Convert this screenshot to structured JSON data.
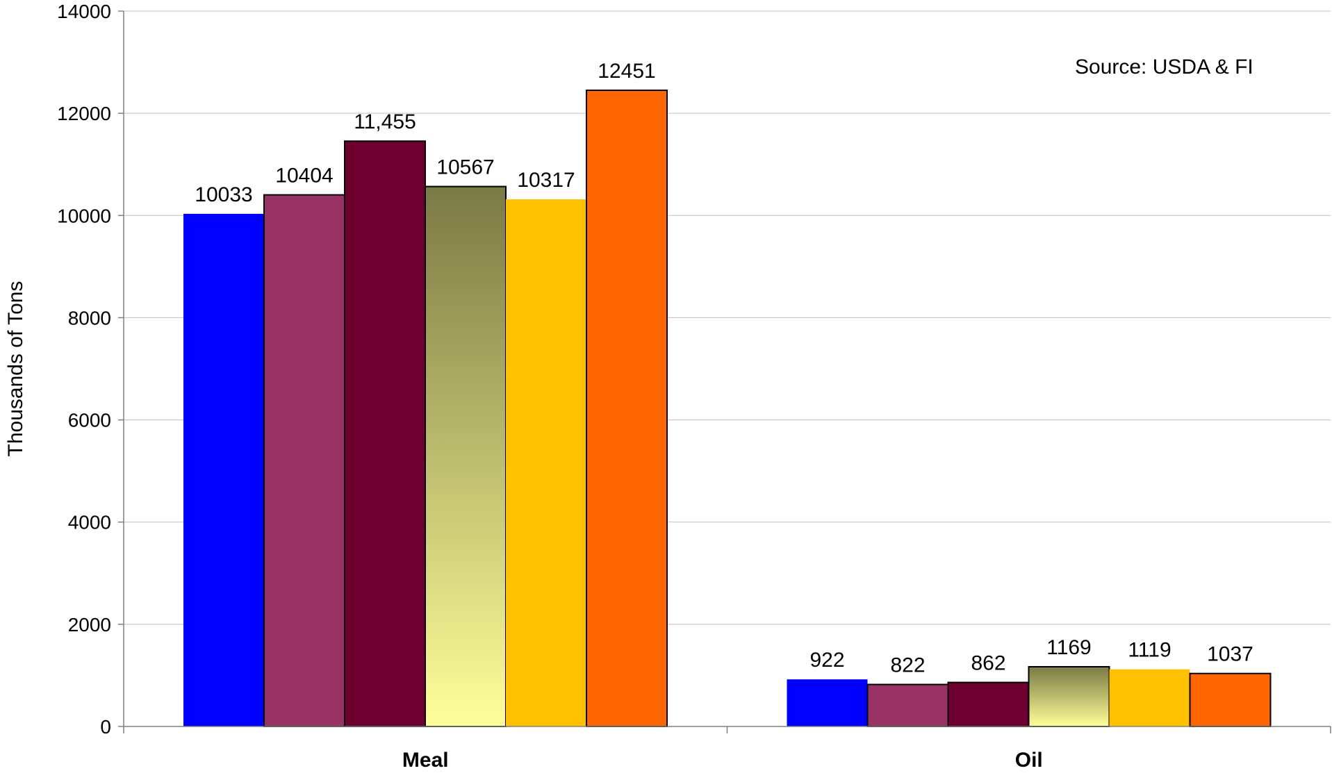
{
  "chart_data": {
    "type": "bar",
    "categories": [
      "Meal",
      "Oil"
    ],
    "series": [
      {
        "values": [
          10033,
          922
        ],
        "value_labels": [
          "10033",
          "922"
        ],
        "color": "#0000FF",
        "outline": false,
        "gradient": false
      },
      {
        "values": [
          10404,
          822
        ],
        "value_labels": [
          "10404",
          "822"
        ],
        "color": "#993366",
        "outline": true,
        "gradient": false
      },
      {
        "values": [
          11455,
          862
        ],
        "value_labels": [
          "11,455",
          "862"
        ],
        "color": "#6E0030",
        "outline": true,
        "gradient": false
      },
      {
        "values": [
          10567,
          1169
        ],
        "value_labels": [
          "10567",
          "1169"
        ],
        "color": "#7A7A44",
        "color_end": "#FFFF99",
        "outline": true,
        "gradient": true
      },
      {
        "values": [
          10317,
          1119
        ],
        "value_labels": [
          "10317",
          "1119"
        ],
        "color": "#FFC000",
        "outline": false,
        "gradient": false
      },
      {
        "values": [
          12451,
          1037
        ],
        "value_labels": [
          "12451",
          "1037"
        ],
        "color": "#FF6600",
        "outline": true,
        "gradient": false
      }
    ],
    "title": "",
    "xlabel": "",
    "ylabel": "Thousands of Tons",
    "ylim": [
      0,
      14000
    ],
    "yticks": [
      0,
      2000,
      4000,
      6000,
      8000,
      10000,
      12000,
      14000
    ],
    "ytick_labels": [
      "0",
      "2000",
      "4000",
      "6000",
      "8000",
      "10000",
      "12000",
      "14000"
    ],
    "grid": true,
    "legend": "none",
    "annotation": "Source: USDA & FI"
  }
}
